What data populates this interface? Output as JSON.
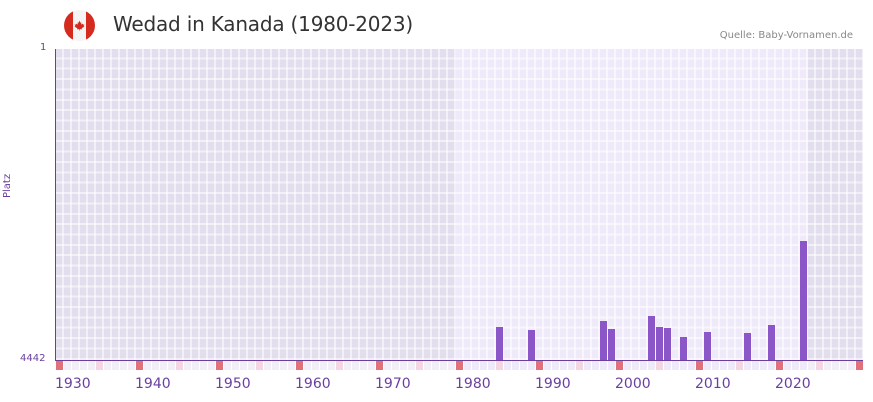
{
  "header": {
    "title": "Wedad in Kanada (1980-2023)",
    "flag_icon": "canada-flag-icon",
    "source": "Quelle: Baby-Vornamen.de"
  },
  "colors": {
    "bar": "#8b57c8",
    "axis": "#6a3fa0",
    "decade_marker": "#e0707a",
    "half_decade_marker": "#f4d6e2",
    "data_zone_bg": "#efeaf9",
    "outside_zone_bg": "#e3deee"
  },
  "chart_data": {
    "type": "bar",
    "title": "Wedad in Kanada (1980-2023)",
    "xlabel": "",
    "ylabel": "Platz",
    "ylim": [
      4442,
      1
    ],
    "y_inverted": true,
    "y_ticks": [
      "1",
      "4442"
    ],
    "x_range": [
      1930,
      2030
    ],
    "x_ticks": [
      "1930",
      "1940",
      "1950",
      "1960",
      "1970",
      "1980",
      "1990",
      "2000",
      "2010",
      "2020"
    ],
    "data_range": [
      1980,
      2023
    ],
    "grid": true,
    "legend": null,
    "categories": [
      1985,
      1989,
      1998,
      1999,
      2004,
      2005,
      2006,
      2008,
      2011,
      2016,
      2019,
      2023
    ],
    "values": [
      3970,
      4015,
      3885,
      4000,
      3815,
      3970,
      3985,
      4115,
      4040,
      4055,
      3940,
      2745
    ]
  },
  "axis": {
    "y_top": "1",
    "y_bottom": "4442",
    "y_label": "Platz",
    "x_labels": [
      "1930",
      "1940",
      "1950",
      "1960",
      "1970",
      "1980",
      "1990",
      "2000",
      "2010",
      "2020"
    ]
  }
}
